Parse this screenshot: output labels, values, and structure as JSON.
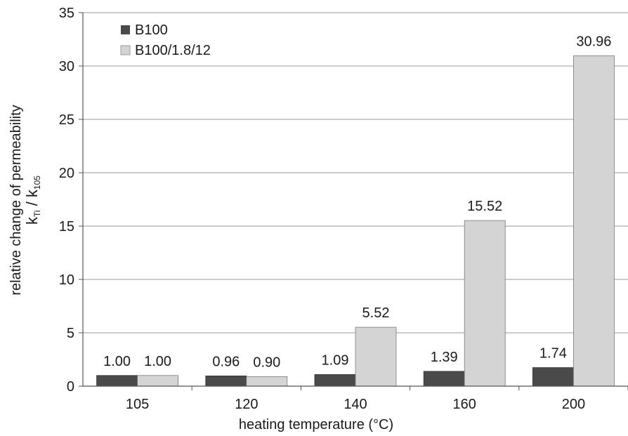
{
  "chart_data": {
    "type": "bar",
    "categories": [
      "105",
      "120",
      "140",
      "160",
      "200"
    ],
    "series": [
      {
        "name": "B100",
        "values": [
          1.0,
          0.96,
          1.09,
          1.39,
          1.74
        ],
        "labels": [
          "1.00",
          "0.96",
          "1.09",
          "1.39",
          "1.74"
        ],
        "color": "#4a4a4a"
      },
      {
        "name": "B100/1.8/12",
        "values": [
          1.0,
          0.9,
          5.52,
          15.52,
          30.96
        ],
        "labels": [
          "1.00",
          "0.90",
          "5.52",
          "15.52",
          "30.96"
        ],
        "color": "#d4d4d4"
      }
    ],
    "xlabel": "heating temperature (°C)",
    "ylabel": {
      "line1": "relative change of permeability",
      "k1": "k",
      "sub1": "Ti",
      "sep": " / ",
      "k2": "k",
      "sub2": "105"
    },
    "ylim": [
      0,
      35
    ],
    "yticks": [
      "0",
      "5",
      "10",
      "15",
      "20",
      "25",
      "30",
      "35"
    ],
    "grid": true,
    "legend_position": "top-left"
  }
}
